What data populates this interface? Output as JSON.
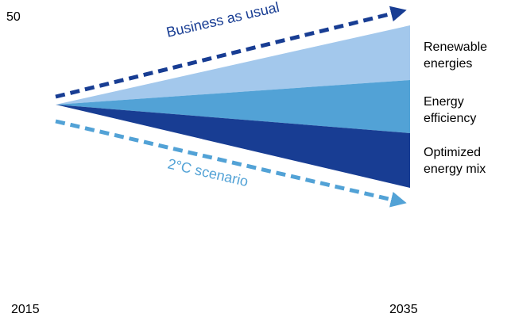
{
  "chart_data": {
    "type": "area",
    "x": [
      "2015",
      "2035"
    ],
    "y_axis_label": "50",
    "wedge_segments": [
      {
        "label_lines": [
          "Renewable",
          "energies"
        ],
        "color": "#a3c8ec"
      },
      {
        "label_lines": [
          "Energy",
          "efficiency"
        ],
        "color": "#52a2d6"
      },
      {
        "label_lines": [
          "Optimized",
          "energy mix"
        ],
        "color": "#183d93"
      }
    ],
    "scenarios": [
      {
        "label": "Business as usual",
        "color": "#183d93",
        "direction": "up",
        "line_style": "dashed"
      },
      {
        "label": "2°C scenario",
        "color": "#52a2d6",
        "direction": "down",
        "line_style": "dashed"
      }
    ],
    "grid": false,
    "legend": "right"
  }
}
